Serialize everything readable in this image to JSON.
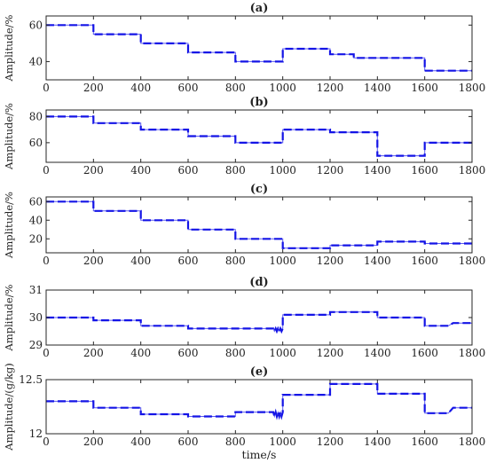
{
  "chart_data": [
    {
      "type": "line",
      "title": "(a)",
      "ylabel": "Amplitude/%",
      "xlim": [
        0,
        1800
      ],
      "ylim": [
        30,
        65
      ],
      "xticks": [
        0,
        200,
        400,
        600,
        800,
        1000,
        1200,
        1400,
        1600,
        1800
      ],
      "yticks": [
        40,
        60
      ],
      "series": [
        {
          "x": [
            0,
            200,
            200,
            400,
            400,
            600,
            600,
            800,
            800,
            1000,
            1000,
            1200,
            1200,
            1300,
            1300,
            1600,
            1600,
            1800
          ],
          "values": [
            60,
            60,
            55,
            55,
            50,
            50,
            45,
            45,
            40,
            40,
            47,
            47,
            44,
            44,
            42,
            42,
            35,
            35
          ]
        }
      ]
    },
    {
      "type": "line",
      "title": "(b)",
      "ylabel": "Amplitude/%",
      "xlim": [
        0,
        1800
      ],
      "ylim": [
        45,
        85
      ],
      "xticks": [
        0,
        200,
        400,
        600,
        800,
        1000,
        1200,
        1400,
        1600,
        1800
      ],
      "yticks": [
        60,
        80
      ],
      "series": [
        {
          "x": [
            0,
            200,
            200,
            400,
            400,
            600,
            600,
            800,
            800,
            1000,
            1000,
            1200,
            1200,
            1400,
            1400,
            1600,
            1600,
            1800
          ],
          "values": [
            80,
            80,
            75,
            75,
            70,
            70,
            65,
            65,
            60,
            60,
            70,
            70,
            68,
            68,
            50,
            50,
            60,
            60
          ]
        }
      ]
    },
    {
      "type": "line",
      "title": "(c)",
      "ylabel": "Amplitude/%",
      "xlim": [
        0,
        1800
      ],
      "ylim": [
        5,
        65
      ],
      "xticks": [
        0,
        200,
        400,
        600,
        800,
        1000,
        1200,
        1400,
        1600,
        1800
      ],
      "yticks": [
        20,
        40,
        60
      ],
      "series": [
        {
          "x": [
            0,
            200,
            200,
            400,
            400,
            600,
            600,
            800,
            800,
            1000,
            1000,
            1200,
            1200,
            1400,
            1400,
            1600,
            1600,
            1800
          ],
          "values": [
            60,
            60,
            50,
            50,
            40,
            40,
            30,
            30,
            20,
            20,
            10,
            10,
            13,
            13,
            17,
            17,
            15,
            15
          ]
        }
      ]
    },
    {
      "type": "line",
      "title": "(d)",
      "ylabel": "Amplitude/%",
      "xlim": [
        0,
        1800
      ],
      "ylim": [
        29,
        31
      ],
      "xticks": [
        0,
        200,
        400,
        600,
        800,
        1000,
        1200,
        1400,
        1600,
        1800
      ],
      "yticks": [
        29,
        30,
        31
      ],
      "series": [
        {
          "x": [
            0,
            200,
            200,
            400,
            400,
            600,
            600,
            960,
            965,
            970,
            975,
            980,
            985,
            990,
            995,
            1000,
            1000,
            1200,
            1200,
            1400,
            1400,
            1600,
            1600,
            1700,
            1720,
            1800
          ],
          "values": [
            30,
            30,
            29.9,
            29.9,
            29.7,
            29.7,
            29.6,
            29.6,
            29.5,
            29.6,
            29.5,
            29.6,
            29.5,
            29.6,
            29.5,
            29.6,
            30.1,
            30.1,
            30.2,
            30.2,
            30,
            30,
            29.7,
            29.7,
            29.8,
            29.8
          ]
        }
      ]
    },
    {
      "type": "line",
      "title": "(e)",
      "ylabel": "Amplitude/(g/kg)",
      "xlabel": "time/s",
      "xlim": [
        0,
        1800
      ],
      "ylim": [
        12,
        12.5
      ],
      "xticks": [
        0,
        200,
        400,
        600,
        800,
        1000,
        1200,
        1400,
        1600,
        1800
      ],
      "yticks": [
        12,
        12.5
      ],
      "yticklabels": [
        "12",
        "12.5"
      ],
      "series": [
        {
          "x": [
            0,
            200,
            200,
            400,
            400,
            600,
            600,
            800,
            800,
            960,
            965,
            970,
            975,
            980,
            985,
            990,
            995,
            1000,
            1000,
            1200,
            1200,
            1400,
            1400,
            1600,
            1600,
            1700,
            1720,
            1800
          ],
          "values": [
            12.3,
            12.3,
            12.24,
            12.24,
            12.18,
            12.18,
            12.16,
            12.16,
            12.2,
            12.2,
            12.16,
            12.2,
            12.16,
            12.2,
            12.16,
            12.2,
            12.16,
            12.2,
            12.36,
            12.36,
            12.46,
            12.46,
            12.37,
            12.37,
            12.19,
            12.19,
            12.24,
            12.24
          ]
        }
      ]
    }
  ]
}
